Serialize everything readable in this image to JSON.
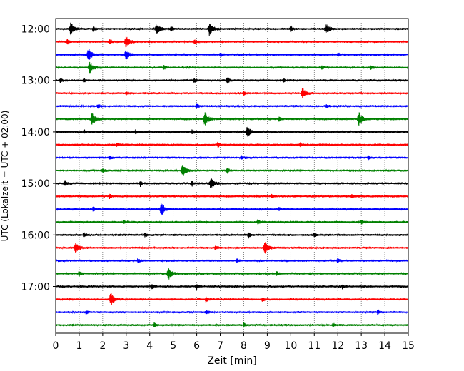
{
  "chart_data": {
    "type": "line",
    "title": "",
    "xlabel": "Zeit  [min]",
    "ylabel": "UTC (Lokalzeit = UTC + 02:00)",
    "xlim": [
      0,
      15
    ],
    "x_ticks": [
      "0",
      "1",
      "2",
      "3",
      "4",
      "5",
      "6",
      "7",
      "8",
      "9",
      "10",
      "11",
      "12",
      "13",
      "14",
      "15"
    ],
    "y_tick_labels": [
      "12:00",
      "13:00",
      "14:00",
      "15:00",
      "16:00",
      "17:00"
    ],
    "grid": "vertical-dotted",
    "line_colors": [
      "#000000",
      "#ff0000",
      "#0000ff",
      "#008000"
    ],
    "traces": [
      {
        "start": "12:00",
        "color": "#000000",
        "events": [
          [
            0.65,
            0.9
          ],
          [
            4.3,
            0.8
          ],
          [
            6.55,
            1.0
          ],
          [
            10.0,
            0.5
          ],
          [
            11.5,
            0.7
          ],
          [
            1.6,
            0.35
          ],
          [
            4.9,
            0.4
          ]
        ]
      },
      {
        "start": "12:15",
        "color": "#ff0000",
        "events": [
          [
            3.0,
            0.8
          ],
          [
            2.3,
            0.4
          ],
          [
            0.5,
            0.3
          ],
          [
            5.9,
            0.3
          ]
        ]
      },
      {
        "start": "12:30",
        "color": "#0000ff",
        "events": [
          [
            1.4,
            1.0
          ],
          [
            3.0,
            0.7
          ],
          [
            7.0,
            0.3
          ],
          [
            12.0,
            0.3
          ]
        ]
      },
      {
        "start": "12:45",
        "color": "#008000",
        "events": [
          [
            1.45,
            0.9
          ],
          [
            4.6,
            0.3
          ],
          [
            11.3,
            0.3
          ],
          [
            13.4,
            0.3
          ]
        ]
      },
      {
        "start": "13:00",
        "color": "#000000",
        "events": [
          [
            7.3,
            0.6
          ],
          [
            1.2,
            0.3
          ],
          [
            5.9,
            0.35
          ],
          [
            9.7,
            0.3
          ],
          [
            0.2,
            0.3
          ]
        ]
      },
      {
        "start": "13:15",
        "color": "#ff0000",
        "events": [
          [
            10.5,
            0.8
          ],
          [
            8.0,
            0.3
          ],
          [
            3.0,
            0.25
          ]
        ]
      },
      {
        "start": "13:30",
        "color": "#0000ff",
        "events": [
          [
            6.0,
            0.3
          ],
          [
            1.8,
            0.3
          ],
          [
            11.5,
            0.3
          ]
        ]
      },
      {
        "start": "13:45",
        "color": "#008000",
        "events": [
          [
            1.55,
            1.0
          ],
          [
            6.35,
            1.0
          ],
          [
            12.9,
            1.0
          ],
          [
            9.5,
            0.3
          ]
        ]
      },
      {
        "start": "14:00",
        "color": "#000000",
        "events": [
          [
            8.15,
            0.8
          ],
          [
            5.8,
            0.35
          ],
          [
            1.2,
            0.3
          ],
          [
            3.4,
            0.3
          ]
        ]
      },
      {
        "start": "14:15",
        "color": "#ff0000",
        "events": [
          [
            6.9,
            0.4
          ],
          [
            2.6,
            0.3
          ],
          [
            10.4,
            0.3
          ]
        ]
      },
      {
        "start": "14:30",
        "color": "#0000ff",
        "events": [
          [
            2.3,
            0.3
          ],
          [
            7.9,
            0.3
          ],
          [
            13.3,
            0.3
          ]
        ]
      },
      {
        "start": "14:45",
        "color": "#008000",
        "events": [
          [
            5.4,
            1.0
          ],
          [
            7.3,
            0.4
          ],
          [
            2.0,
            0.3
          ]
        ]
      },
      {
        "start": "15:00",
        "color": "#000000",
        "events": [
          [
            6.6,
            0.8
          ],
          [
            0.4,
            0.4
          ],
          [
            3.6,
            0.4
          ],
          [
            5.8,
            0.35
          ]
        ]
      },
      {
        "start": "15:15",
        "color": "#ff0000",
        "events": [
          [
            2.3,
            0.35
          ],
          [
            9.2,
            0.35
          ],
          [
            12.6,
            0.3
          ]
        ]
      },
      {
        "start": "15:30",
        "color": "#0000ff",
        "events": [
          [
            4.5,
            1.0
          ],
          [
            1.6,
            0.4
          ],
          [
            9.5,
            0.3
          ]
        ]
      },
      {
        "start": "15:45",
        "color": "#008000",
        "events": [
          [
            8.6,
            0.35
          ],
          [
            2.9,
            0.3
          ],
          [
            13.0,
            0.3
          ]
        ]
      },
      {
        "start": "16:00",
        "color": "#000000",
        "events": [
          [
            8.2,
            0.45
          ],
          [
            1.2,
            0.35
          ],
          [
            3.8,
            0.3
          ],
          [
            11.0,
            0.3
          ]
        ]
      },
      {
        "start": "16:15",
        "color": "#ff0000",
        "events": [
          [
            0.85,
            0.7
          ],
          [
            8.9,
            0.9
          ],
          [
            6.8,
            0.3
          ]
        ]
      },
      {
        "start": "16:30",
        "color": "#0000ff",
        "events": [
          [
            3.5,
            0.3
          ],
          [
            7.7,
            0.3
          ],
          [
            12.0,
            0.3
          ]
        ]
      },
      {
        "start": "16:45",
        "color": "#008000",
        "events": [
          [
            4.8,
            0.9
          ],
          [
            1.0,
            0.35
          ],
          [
            9.4,
            0.3
          ]
        ]
      },
      {
        "start": "17:00",
        "color": "#000000",
        "events": [
          [
            4.1,
            0.35
          ],
          [
            6.0,
            0.35
          ],
          [
            12.2,
            0.3
          ]
        ]
      },
      {
        "start": "17:15",
        "color": "#ff0000",
        "events": [
          [
            2.35,
            1.0
          ],
          [
            6.4,
            0.35
          ],
          [
            8.8,
            0.3
          ]
        ]
      },
      {
        "start": "17:30",
        "color": "#0000ff",
        "events": [
          [
            13.7,
            0.4
          ],
          [
            1.3,
            0.3
          ],
          [
            6.4,
            0.3
          ]
        ]
      },
      {
        "start": "17:45",
        "color": "#008000",
        "events": [
          [
            4.2,
            0.3
          ],
          [
            8.0,
            0.3
          ],
          [
            11.8,
            0.3
          ]
        ]
      }
    ]
  }
}
